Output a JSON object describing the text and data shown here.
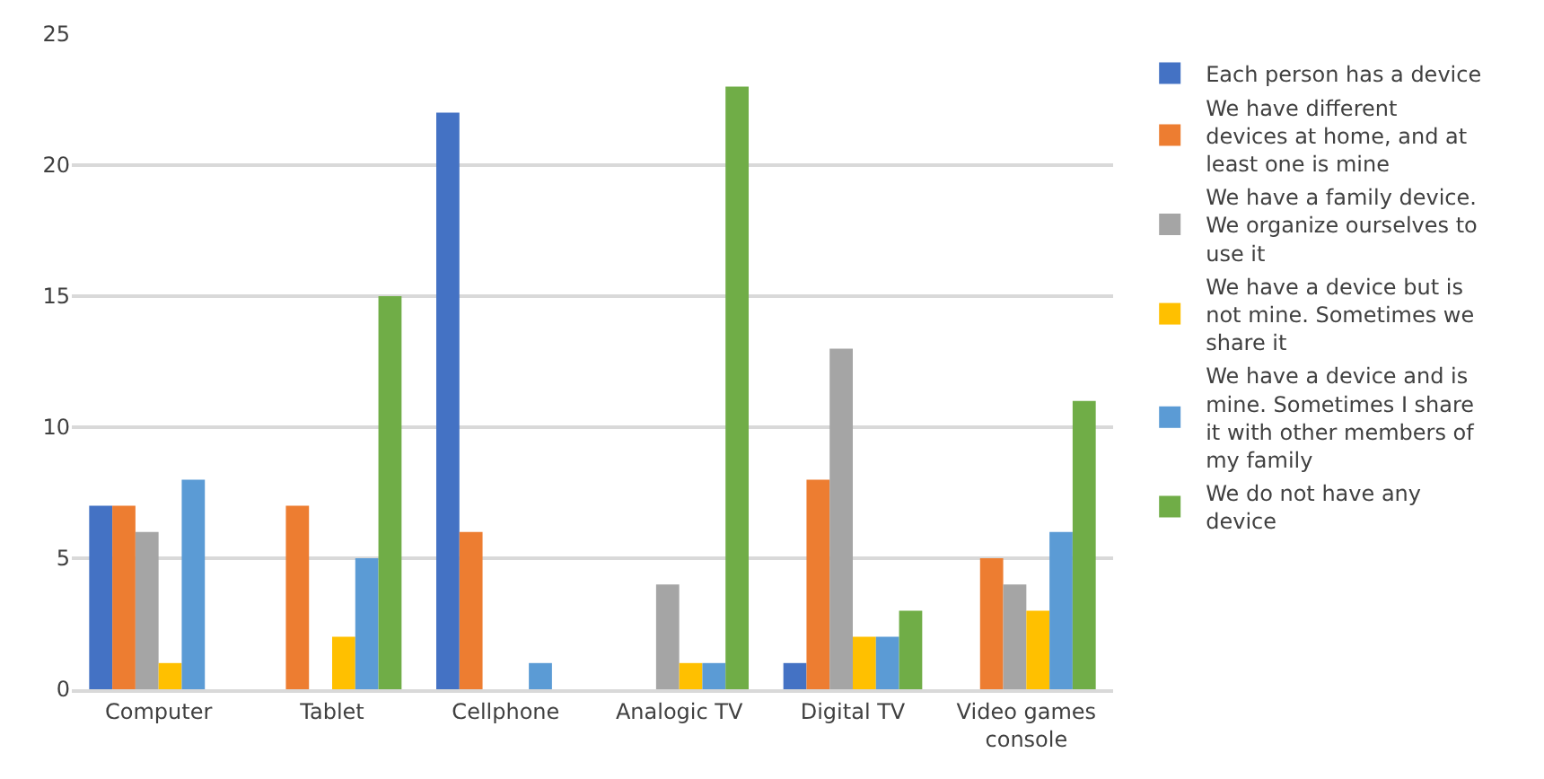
{
  "chart_data": {
    "type": "bar",
    "categories": [
      "Computer",
      "Tablet",
      "Cellphone",
      "Analogic TV",
      "Digital TV",
      "Video games console"
    ],
    "series": [
      {
        "name": "Each person has a device",
        "color": "#4472c4",
        "values": [
          7,
          0,
          22,
          0,
          1,
          0
        ]
      },
      {
        "name": "We have different devices at home, and at least one is mine",
        "color": "#ed7d31",
        "values": [
          7,
          7,
          6,
          0,
          8,
          5
        ]
      },
      {
        "name": "We have a family device. We organize ourselves to use it",
        "color": "#a5a5a5",
        "values": [
          6,
          0,
          0,
          4,
          13,
          4
        ]
      },
      {
        "name": "We have a device but is not mine. Sometimes we share it",
        "color": "#ffc000",
        "values": [
          1,
          2,
          0,
          1,
          2,
          3
        ]
      },
      {
        "name": "We have a device and is mine. Sometimes I share it with other members of my family",
        "color": "#5b9bd5",
        "values": [
          8,
          5,
          1,
          1,
          2,
          6
        ]
      },
      {
        "name": "We do not have any device",
        "color": "#70ad47",
        "values": [
          0,
          15,
          0,
          23,
          3,
          11
        ]
      }
    ],
    "ylim": [
      0,
      25
    ],
    "yticks": [
      0,
      5,
      10,
      15,
      20,
      25
    ],
    "grid": "y",
    "legend": "right"
  }
}
